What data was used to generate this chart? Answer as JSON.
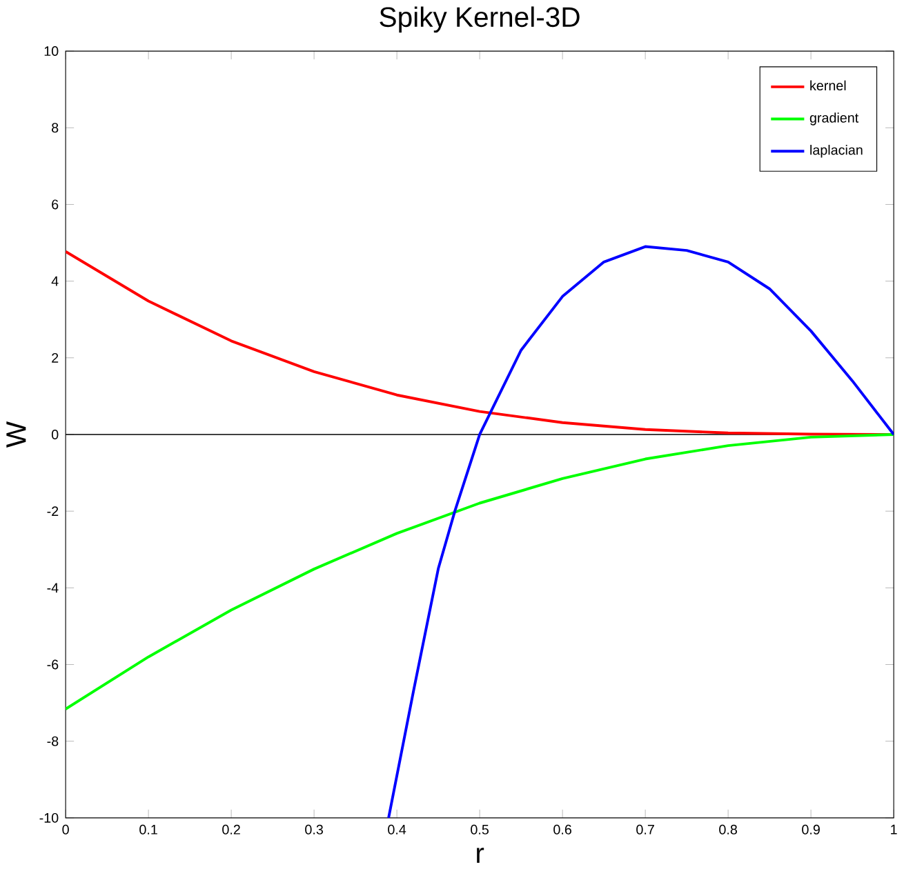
{
  "chart_data": {
    "type": "line",
    "title": "Spiky Kernel-3D",
    "xlabel": "r",
    "ylabel": "W",
    "xlim": [
      0,
      1
    ],
    "ylim": [
      -10,
      10
    ],
    "xticks": [
      0,
      0.1,
      0.2,
      0.3,
      0.4,
      0.5,
      0.6,
      0.7,
      0.8,
      0.9,
      1
    ],
    "yticks": [
      -10,
      -8,
      -6,
      -4,
      -2,
      0,
      2,
      4,
      6,
      8,
      10
    ],
    "grid": false,
    "legend": "top right",
    "marker": "none",
    "line_style": "solid",
    "ref_lines": [
      {
        "axis": "y",
        "value": 0,
        "color": "#000000"
      }
    ],
    "series": [
      {
        "name": "kernel",
        "color": "#ff0000",
        "x": [
          0,
          0.1,
          0.2,
          0.3,
          0.4,
          0.5,
          0.6,
          0.7,
          0.8,
          0.9,
          1
        ],
        "values": [
          4.77,
          3.48,
          2.44,
          1.64,
          1.03,
          0.6,
          0.31,
          0.13,
          0.04,
          0.01,
          0
        ]
      },
      {
        "name": "gradient",
        "color": "#00ff00",
        "x": [
          0,
          0.1,
          0.2,
          0.3,
          0.4,
          0.5,
          0.6,
          0.7,
          0.8,
          0.9,
          1
        ],
        "values": [
          -7.16,
          -5.8,
          -4.58,
          -3.51,
          -2.58,
          -1.79,
          -1.15,
          -0.64,
          -0.29,
          -0.07,
          0
        ]
      },
      {
        "name": "laplacian",
        "color": "#0000ff",
        "x": [
          0.39,
          0.42,
          0.45,
          0.47,
          0.5,
          0.55,
          0.6,
          0.65,
          0.7,
          0.75,
          0.8,
          0.85,
          0.9,
          0.95,
          1
        ],
        "values": [
          -10,
          -6.7,
          -3.5,
          -2,
          0,
          2.2,
          3.6,
          4.5,
          4.9,
          4.8,
          4.5,
          3.8,
          2.7,
          1.4,
          0
        ]
      }
    ]
  }
}
